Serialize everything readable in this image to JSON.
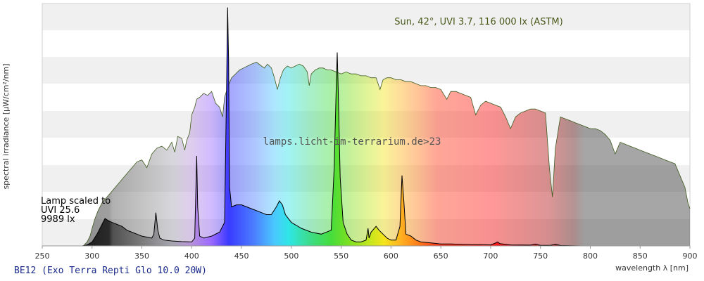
{
  "chart_data": {
    "type": "area",
    "title": "",
    "xlabel": "wavelength λ [nm]",
    "ylabel": "spectral irradiance [µW/cm²/nm]",
    "xlim": [
      250,
      900
    ],
    "x_ticks": [
      250,
      300,
      350,
      400,
      450,
      500,
      550,
      600,
      650,
      700,
      750,
      800,
      850,
      900
    ],
    "y_tick_labels_shown": false,
    "grid": "horizontal bands",
    "colors": {
      "sun_outline": "#3f5a1e",
      "lamp_outline": "#000000",
      "band_light": "#f0f0f0",
      "footer_text": "#1a2a8a",
      "sun_label_text": "#4a5a1c"
    },
    "annotations": {
      "sun_label": "Sun, 42°, UVI 3.7, 116 000 lx (ASTM)",
      "lamp_label_line1": "Lamp scaled to",
      "lamp_label_line2": "UVI 25.6",
      "lamp_label_line3": "9989 lx",
      "watermark": "lamps.licht-im-terrarium.de>23",
      "footer": "BE12 (Exo Terra Repti Glo 10.0 20W)"
    },
    "series": [
      {
        "name": "Sun, 42°, UVI 3.7, 116 000 lx (ASTM)",
        "points": [
          [
            292,
            0.5
          ],
          [
            295,
            2
          ],
          [
            298,
            5
          ],
          [
            300,
            9
          ],
          [
            303,
            14
          ],
          [
            306,
            18
          ],
          [
            310,
            22
          ],
          [
            315,
            25
          ],
          [
            320,
            28
          ],
          [
            325,
            31
          ],
          [
            330,
            34
          ],
          [
            335,
            37
          ],
          [
            340,
            40
          ],
          [
            345,
            43
          ],
          [
            350,
            44
          ],
          [
            355,
            40
          ],
          [
            360,
            47
          ],
          [
            365,
            50
          ],
          [
            370,
            51
          ],
          [
            375,
            49
          ],
          [
            380,
            53
          ],
          [
            383,
            48
          ],
          [
            386,
            56
          ],
          [
            390,
            55
          ],
          [
            393,
            49
          ],
          [
            395,
            54
          ],
          [
            398,
            58
          ],
          [
            400,
            67
          ],
          [
            403,
            71
          ],
          [
            405,
            75
          ],
          [
            408,
            76
          ],
          [
            412,
            78
          ],
          [
            416,
            77
          ],
          [
            420,
            79
          ],
          [
            424,
            73
          ],
          [
            428,
            71
          ],
          [
            431,
            66
          ],
          [
            433,
            76
          ],
          [
            436,
            81
          ],
          [
            440,
            86
          ],
          [
            444,
            88
          ],
          [
            448,
            90
          ],
          [
            452,
            91
          ],
          [
            456,
            92
          ],
          [
            460,
            93
          ],
          [
            465,
            94
          ],
          [
            470,
            92
          ],
          [
            473,
            91
          ],
          [
            476,
            93
          ],
          [
            480,
            91
          ],
          [
            483,
            86
          ],
          [
            486,
            80
          ],
          [
            489,
            86
          ],
          [
            492,
            90
          ],
          [
            496,
            92
          ],
          [
            500,
            91
          ],
          [
            504,
            92
          ],
          [
            508,
            93
          ],
          [
            512,
            92
          ],
          [
            516,
            89
          ],
          [
            518,
            82
          ],
          [
            520,
            88
          ],
          [
            524,
            90
          ],
          [
            528,
            91
          ],
          [
            532,
            91
          ],
          [
            536,
            90
          ],
          [
            540,
            90
          ],
          [
            545,
            89
          ],
          [
            550,
            88
          ],
          [
            555,
            89
          ],
          [
            560,
            88
          ],
          [
            565,
            88
          ],
          [
            570,
            87
          ],
          [
            575,
            87
          ],
          [
            580,
            86
          ],
          [
            585,
            86
          ],
          [
            589,
            80
          ],
          [
            592,
            85
          ],
          [
            596,
            86
          ],
          [
            600,
            86
          ],
          [
            605,
            85
          ],
          [
            610,
            85
          ],
          [
            615,
            84
          ],
          [
            620,
            84
          ],
          [
            625,
            83
          ],
          [
            630,
            82
          ],
          [
            635,
            82
          ],
          [
            640,
            81
          ],
          [
            645,
            81
          ],
          [
            650,
            80
          ],
          [
            656,
            75
          ],
          [
            660,
            79
          ],
          [
            665,
            79
          ],
          [
            670,
            78
          ],
          [
            675,
            77
          ],
          [
            680,
            76
          ],
          [
            685,
            67
          ],
          [
            690,
            72
          ],
          [
            695,
            74
          ],
          [
            700,
            73
          ],
          [
            705,
            72
          ],
          [
            710,
            71
          ],
          [
            715,
            66
          ],
          [
            720,
            60
          ],
          [
            725,
            66
          ],
          [
            730,
            68
          ],
          [
            735,
            69
          ],
          [
            740,
            70
          ],
          [
            745,
            70
          ],
          [
            750,
            69
          ],
          [
            755,
            68
          ],
          [
            759,
            40
          ],
          [
            762,
            25
          ],
          [
            765,
            50
          ],
          [
            770,
            66
          ],
          [
            775,
            65
          ],
          [
            780,
            64
          ],
          [
            785,
            63
          ],
          [
            790,
            62
          ],
          [
            795,
            61
          ],
          [
            800,
            60
          ],
          [
            805,
            60
          ],
          [
            810,
            59
          ],
          [
            815,
            57
          ],
          [
            820,
            54
          ],
          [
            825,
            47
          ],
          [
            830,
            53
          ],
          [
            835,
            52
          ],
          [
            840,
            51
          ],
          [
            845,
            50
          ],
          [
            850,
            49
          ],
          [
            855,
            48
          ],
          [
            860,
            47
          ],
          [
            865,
            46
          ],
          [
            870,
            45
          ],
          [
            875,
            44
          ],
          [
            880,
            43
          ],
          [
            885,
            42
          ],
          [
            890,
            36
          ],
          [
            895,
            30
          ],
          [
            898,
            22
          ],
          [
            900,
            19
          ]
        ]
      },
      {
        "name": "Lamp scaled to UVI 25.6, 9989 lx",
        "points": [
          [
            290,
            0
          ],
          [
            295,
            0.5
          ],
          [
            300,
            2
          ],
          [
            305,
            6
          ],
          [
            310,
            11
          ],
          [
            313,
            14
          ],
          [
            316,
            13
          ],
          [
            320,
            12
          ],
          [
            325,
            11
          ],
          [
            330,
            10
          ],
          [
            335,
            8
          ],
          [
            340,
            7
          ],
          [
            345,
            6
          ],
          [
            350,
            5
          ],
          [
            355,
            4.5
          ],
          [
            360,
            4
          ],
          [
            362,
            6
          ],
          [
            364,
            17
          ],
          [
            366,
            8
          ],
          [
            368,
            4
          ],
          [
            372,
            3
          ],
          [
            380,
            2.5
          ],
          [
            390,
            2.2
          ],
          [
            400,
            2
          ],
          [
            403,
            4
          ],
          [
            405,
            46
          ],
          [
            406,
            20
          ],
          [
            408,
            5
          ],
          [
            412,
            4
          ],
          [
            420,
            5
          ],
          [
            428,
            7
          ],
          [
            433,
            12
          ],
          [
            435,
            80
          ],
          [
            436,
            122
          ],
          [
            437,
            95
          ],
          [
            438,
            30
          ],
          [
            440,
            20
          ],
          [
            445,
            21
          ],
          [
            450,
            21
          ],
          [
            455,
            20
          ],
          [
            460,
            19
          ],
          [
            465,
            18
          ],
          [
            470,
            17
          ],
          [
            475,
            16
          ],
          [
            480,
            16
          ],
          [
            485,
            20
          ],
          [
            488,
            23
          ],
          [
            491,
            21
          ],
          [
            494,
            16
          ],
          [
            500,
            12
          ],
          [
            510,
            9
          ],
          [
            520,
            7
          ],
          [
            530,
            6
          ],
          [
            540,
            8
          ],
          [
            543,
            40
          ],
          [
            545,
            80
          ],
          [
            546,
            99
          ],
          [
            547,
            80
          ],
          [
            549,
            35
          ],
          [
            552,
            12
          ],
          [
            556,
            6
          ],
          [
            560,
            3
          ],
          [
            565,
            2
          ],
          [
            570,
            2
          ],
          [
            575,
            3
          ],
          [
            577,
            9
          ],
          [
            578,
            4
          ],
          [
            580,
            7
          ],
          [
            585,
            10
          ],
          [
            588,
            8
          ],
          [
            592,
            6
          ],
          [
            596,
            4
          ],
          [
            600,
            3
          ],
          [
            605,
            3
          ],
          [
            609,
            10
          ],
          [
            611,
            36
          ],
          [
            612,
            29
          ],
          [
            613,
            22
          ],
          [
            615,
            6
          ],
          [
            620,
            5
          ],
          [
            625,
            3
          ],
          [
            630,
            2
          ],
          [
            640,
            1.5
          ],
          [
            650,
            1
          ],
          [
            660,
            1
          ],
          [
            670,
            0.8
          ],
          [
            680,
            0.7
          ],
          [
            690,
            0.6
          ],
          [
            700,
            0.5
          ],
          [
            705,
            1.5
          ],
          [
            707,
            2
          ],
          [
            709,
            1.2
          ],
          [
            715,
            0.8
          ],
          [
            720,
            0.5
          ],
          [
            740,
            0.4
          ],
          [
            745,
            0.9
          ],
          [
            750,
            0.3
          ],
          [
            760,
            0.3
          ],
          [
            765,
            0.8
          ],
          [
            770,
            0.2
          ],
          [
            790,
            0
          ]
        ]
      }
    ]
  }
}
